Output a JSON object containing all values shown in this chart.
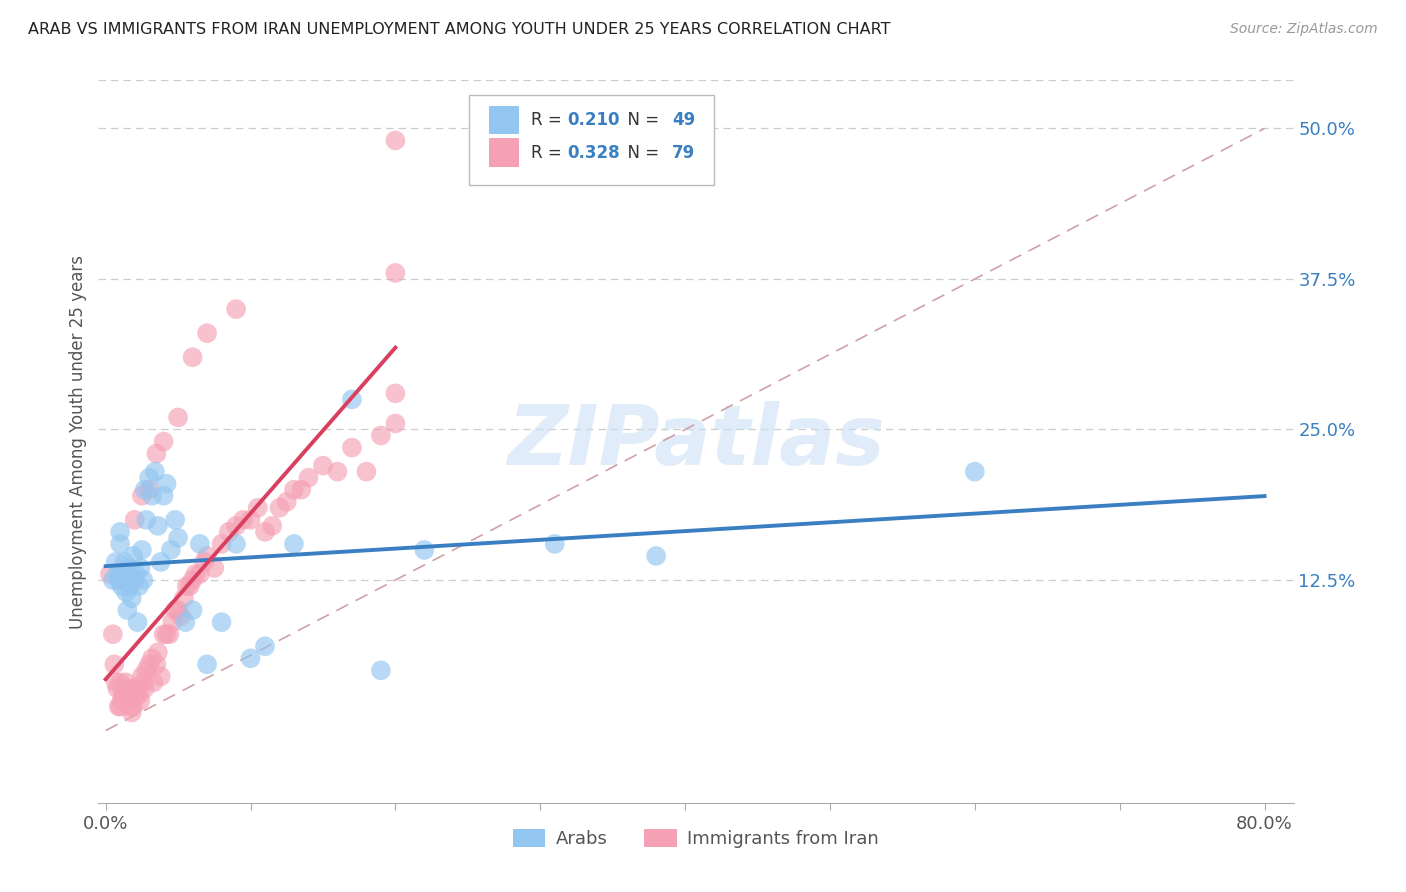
{
  "title": "ARAB VS IMMIGRANTS FROM IRAN UNEMPLOYMENT AMONG YOUTH UNDER 25 YEARS CORRELATION CHART",
  "source": "Source: ZipAtlas.com",
  "ylabel": "Unemployment Among Youth under 25 years",
  "xlim": [
    -0.005,
    0.82
  ],
  "ylim": [
    -0.06,
    0.54
  ],
  "ytick_positions": [
    0.125,
    0.25,
    0.375,
    0.5
  ],
  "ytick_labels": [
    "12.5%",
    "25.0%",
    "37.5%",
    "50.0%"
  ],
  "legend_R_arab": "0.210",
  "legend_N_arab": "49",
  "legend_R_iran": "0.328",
  "legend_N_iran": "79",
  "arab_color": "#92c5f0",
  "iran_color": "#f5a0b5",
  "arab_line_color": "#3a7fc1",
  "iran_line_color": "#d94060",
  "diagonal_color": "#d0a0a8",
  "watermark_color": "#cce0f5",
  "arab_x": [
    0.005,
    0.007,
    0.008,
    0.009,
    0.01,
    0.01,
    0.011,
    0.012,
    0.013,
    0.014,
    0.015,
    0.016,
    0.017,
    0.018,
    0.019,
    0.02,
    0.021,
    0.022,
    0.023,
    0.024,
    0.025,
    0.026,
    0.027,
    0.028,
    0.03,
    0.032,
    0.034,
    0.036,
    0.038,
    0.04,
    0.042,
    0.045,
    0.048,
    0.05,
    0.055,
    0.06,
    0.065,
    0.07,
    0.08,
    0.09,
    0.1,
    0.11,
    0.13,
    0.17,
    0.19,
    0.22,
    0.31,
    0.38,
    0.6
  ],
  "arab_y": [
    0.125,
    0.14,
    0.13,
    0.125,
    0.155,
    0.165,
    0.12,
    0.13,
    0.14,
    0.115,
    0.1,
    0.135,
    0.12,
    0.11,
    0.145,
    0.125,
    0.13,
    0.09,
    0.12,
    0.135,
    0.15,
    0.125,
    0.2,
    0.175,
    0.21,
    0.195,
    0.215,
    0.17,
    0.14,
    0.195,
    0.205,
    0.15,
    0.175,
    0.16,
    0.09,
    0.1,
    0.155,
    0.055,
    0.09,
    0.155,
    0.06,
    0.07,
    0.155,
    0.275,
    0.05,
    0.15,
    0.155,
    0.145,
    0.215
  ],
  "iran_x": [
    0.003,
    0.005,
    0.006,
    0.007,
    0.008,
    0.009,
    0.01,
    0.01,
    0.011,
    0.012,
    0.013,
    0.014,
    0.015,
    0.016,
    0.017,
    0.018,
    0.019,
    0.02,
    0.021,
    0.022,
    0.023,
    0.024,
    0.025,
    0.026,
    0.027,
    0.028,
    0.03,
    0.032,
    0.033,
    0.035,
    0.036,
    0.038,
    0.04,
    0.042,
    0.044,
    0.046,
    0.048,
    0.05,
    0.052,
    0.054,
    0.056,
    0.058,
    0.06,
    0.062,
    0.065,
    0.068,
    0.07,
    0.075,
    0.08,
    0.085,
    0.09,
    0.095,
    0.1,
    0.105,
    0.11,
    0.115,
    0.12,
    0.125,
    0.13,
    0.135,
    0.14,
    0.15,
    0.16,
    0.17,
    0.18,
    0.19,
    0.2,
    0.2,
    0.2,
    0.2,
    0.02,
    0.025,
    0.03,
    0.035,
    0.04,
    0.05,
    0.06,
    0.07,
    0.09
  ],
  "iran_y": [
    0.13,
    0.08,
    0.055,
    0.04,
    0.035,
    0.02,
    0.02,
    0.04,
    0.025,
    0.03,
    0.03,
    0.04,
    0.035,
    0.025,
    0.02,
    0.015,
    0.02,
    0.035,
    0.035,
    0.03,
    0.03,
    0.025,
    0.045,
    0.04,
    0.035,
    0.05,
    0.055,
    0.06,
    0.04,
    0.055,
    0.065,
    0.045,
    0.08,
    0.08,
    0.08,
    0.09,
    0.1,
    0.1,
    0.095,
    0.11,
    0.12,
    0.12,
    0.125,
    0.13,
    0.13,
    0.14,
    0.145,
    0.135,
    0.155,
    0.165,
    0.17,
    0.175,
    0.175,
    0.185,
    0.165,
    0.17,
    0.185,
    0.19,
    0.2,
    0.2,
    0.21,
    0.22,
    0.215,
    0.235,
    0.215,
    0.245,
    0.255,
    0.28,
    0.49,
    0.38,
    0.175,
    0.195,
    0.2,
    0.23,
    0.24,
    0.26,
    0.31,
    0.33,
    0.35
  ]
}
